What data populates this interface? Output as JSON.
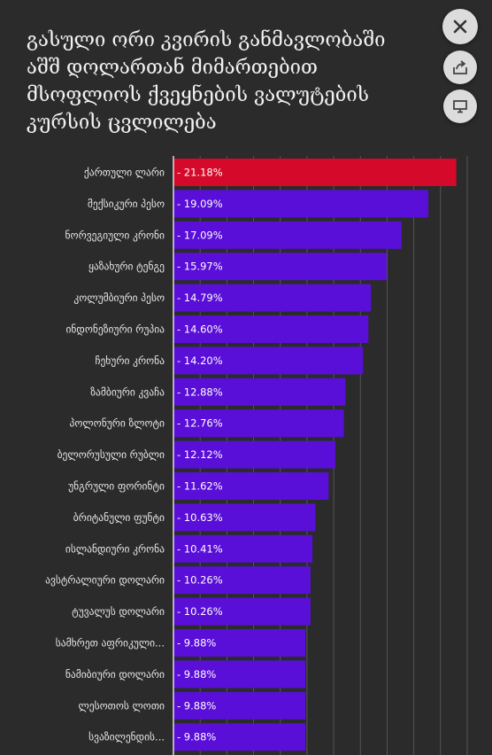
{
  "title_lines": [
    "გასული ორი კვირის განმავლობაში",
    "აშშ დოლართან მიმართებით",
    "მსოფლიოს ქვეყნების ვალუტების",
    "კურსის ცვლილება"
  ],
  "buttons": {
    "close_icon": "close-icon",
    "share_icon": "share-icon",
    "embed_icon": "embed-icon"
  },
  "colors": {
    "background": "#2b2b2b",
    "bar": "#5a0fd8",
    "highlight": "#d50a2a",
    "label_text": "#e6e6e6",
    "value_text": "#ffffff",
    "grid": "#555555"
  },
  "chart_data": {
    "type": "bar",
    "orientation": "horizontal",
    "categories": [
      "ქართული ლარი",
      "მექსიკური პესო",
      "ნორვეგიული კრონი",
      "ყაზახური ტენგე",
      "კოლუმბიური პესო",
      "ინდონეზიური რუპია",
      "ჩეხური კრონა",
      "ზამბიური კვაჩა",
      "პოლონური ზლოტი",
      "ბელორუსული რუბლი",
      "უნგრული ფორინტი",
      "ბრიტანული ფუნტი",
      "ისლანდიური კრონა",
      "ავსტრალიური დოლარი",
      "ტუვალუს დოლარი",
      "სამხრეთ აფრიკული...",
      "ნამიბიური დოლარი",
      "ლესოთოს ლოთი",
      "სვაზილენდის..."
    ],
    "values": [
      21.18,
      19.09,
      17.09,
      15.97,
      14.79,
      14.6,
      14.2,
      12.88,
      12.76,
      12.12,
      11.62,
      10.63,
      10.41,
      10.26,
      10.26,
      9.88,
      9.88,
      9.88,
      9.88
    ],
    "value_labels": [
      "21.18%",
      "19.09%",
      "17.09%",
      "15.97%",
      "14.79%",
      "14.60%",
      "14.20%",
      "12.88%",
      "12.76%",
      "12.12%",
      "11.62%",
      "10.63%",
      "10.41%",
      "10.26%",
      "10.26%",
      "9.88%",
      "9.88%",
      "9.88%",
      "9.88%"
    ],
    "highlight_index": 0,
    "xlim": [
      0,
      22
    ],
    "grid": true
  }
}
